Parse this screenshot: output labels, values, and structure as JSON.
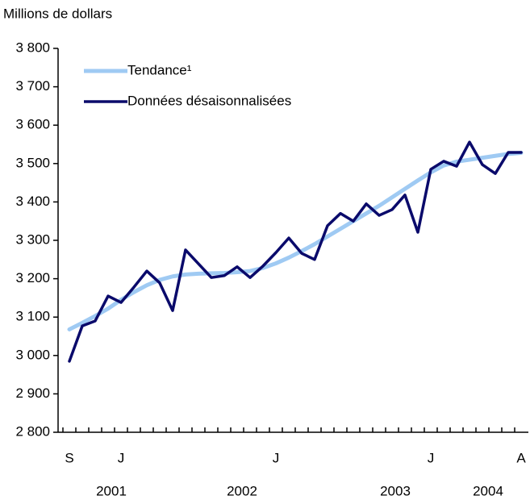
{
  "chart_data": {
    "type": "line",
    "y_label": "Millions de dollars",
    "categories": [
      "S",
      null,
      null,
      null,
      "J",
      null,
      null,
      null,
      null,
      null,
      null,
      null,
      null,
      null,
      null,
      null,
      "J",
      null,
      null,
      null,
      null,
      null,
      null,
      null,
      null,
      null,
      null,
      null,
      "J",
      null,
      null,
      null,
      null,
      null,
      null,
      "A"
    ],
    "years": [
      "2001",
      "2002",
      "2003",
      "2004"
    ],
    "series": [
      {
        "name": "Tendance¹",
        "color": "#9fcaf3",
        "values": [
          3068,
          3085,
          3103,
          3122,
          3145,
          3165,
          3183,
          3197,
          3206,
          3211,
          3213,
          3214,
          3215,
          3217,
          3220,
          3228,
          3240,
          3255,
          3272,
          3290,
          3310,
          3330,
          3350,
          3370,
          3390,
          3412,
          3434,
          3456,
          3477,
          3495,
          3505,
          3510,
          3515,
          3520,
          3525,
          3528
        ]
      },
      {
        "name": "Données désaisonnalisées",
        "color": "#0a0a6b",
        "values": [
          2985,
          3077,
          3090,
          3155,
          3138,
          3178,
          3220,
          3189,
          3117,
          3275,
          3239,
          3203,
          3208,
          3231,
          3203,
          3233,
          3268,
          3306,
          3266,
          3250,
          3338,
          3370,
          3350,
          3395,
          3365,
          3380,
          3418,
          3321,
          3485,
          3506,
          3493,
          3556,
          3497,
          3474,
          3529,
          3529
        ]
      }
    ],
    "ylim": [
      2800,
      3800
    ],
    "yticks": [
      {
        "value": 2800,
        "label": "2 800"
      },
      {
        "value": 2900,
        "label": "2 900"
      },
      {
        "value": 3000,
        "label": "3 000"
      },
      {
        "value": 3100,
        "label": "3 100"
      },
      {
        "value": 3200,
        "label": "3 200"
      },
      {
        "value": 3300,
        "label": "3 300"
      },
      {
        "value": 3400,
        "label": "3 400"
      },
      {
        "value": 3500,
        "label": "3 500"
      },
      {
        "value": 3600,
        "label": "3 600"
      },
      {
        "value": 3700,
        "label": "3 700"
      },
      {
        "value": 3800,
        "label": "3 800"
      }
    ],
    "grid": false,
    "legend": "top-left"
  }
}
